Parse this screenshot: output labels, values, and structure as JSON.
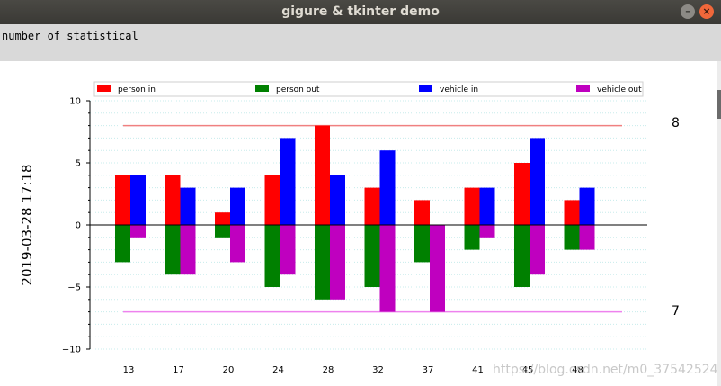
{
  "window": {
    "title": "gigure & tkinter demo",
    "min_glyph": "–",
    "close_glyph": "×"
  },
  "toolbar": {
    "label": "number of statistical"
  },
  "side_date": "2019-03-28  17:18",
  "ref_labels": {
    "upper": "8",
    "lower": "7"
  },
  "watermark": "https://blog.csdn.net/m0_37542524",
  "chart_data": {
    "type": "bar",
    "categories": [
      "13",
      "17",
      "20",
      "24",
      "28",
      "32",
      "37",
      "41",
      "45",
      "48"
    ],
    "series": [
      {
        "name": "person in",
        "color": "#ff0000",
        "values": [
          4,
          4,
          1,
          4,
          8,
          3,
          2,
          3,
          5,
          2
        ]
      },
      {
        "name": "person out",
        "color": "#008000",
        "values": [
          -3,
          -4,
          -1,
          -5,
          -6,
          -5,
          -3,
          -2,
          -5,
          -2
        ]
      },
      {
        "name": "vehicle in",
        "color": "#0000ff",
        "values": [
          4,
          3,
          3,
          7,
          4,
          6,
          0,
          3,
          7,
          3
        ]
      },
      {
        "name": "vehicle out",
        "color": "#bf00bf",
        "values": [
          -1,
          -4,
          -3,
          -4,
          -6,
          -7,
          -7,
          -1,
          -4,
          -2
        ]
      }
    ],
    "ylim": [
      -10,
      10
    ],
    "yticks": [
      "10",
      "5",
      "0",
      "−5",
      "−10"
    ],
    "reference_lines": [
      {
        "value": 8,
        "color": "#f08080"
      },
      {
        "value": -7,
        "color": "#ee82ee"
      }
    ],
    "grid": "horizontal dotted",
    "legend_position": "top"
  }
}
